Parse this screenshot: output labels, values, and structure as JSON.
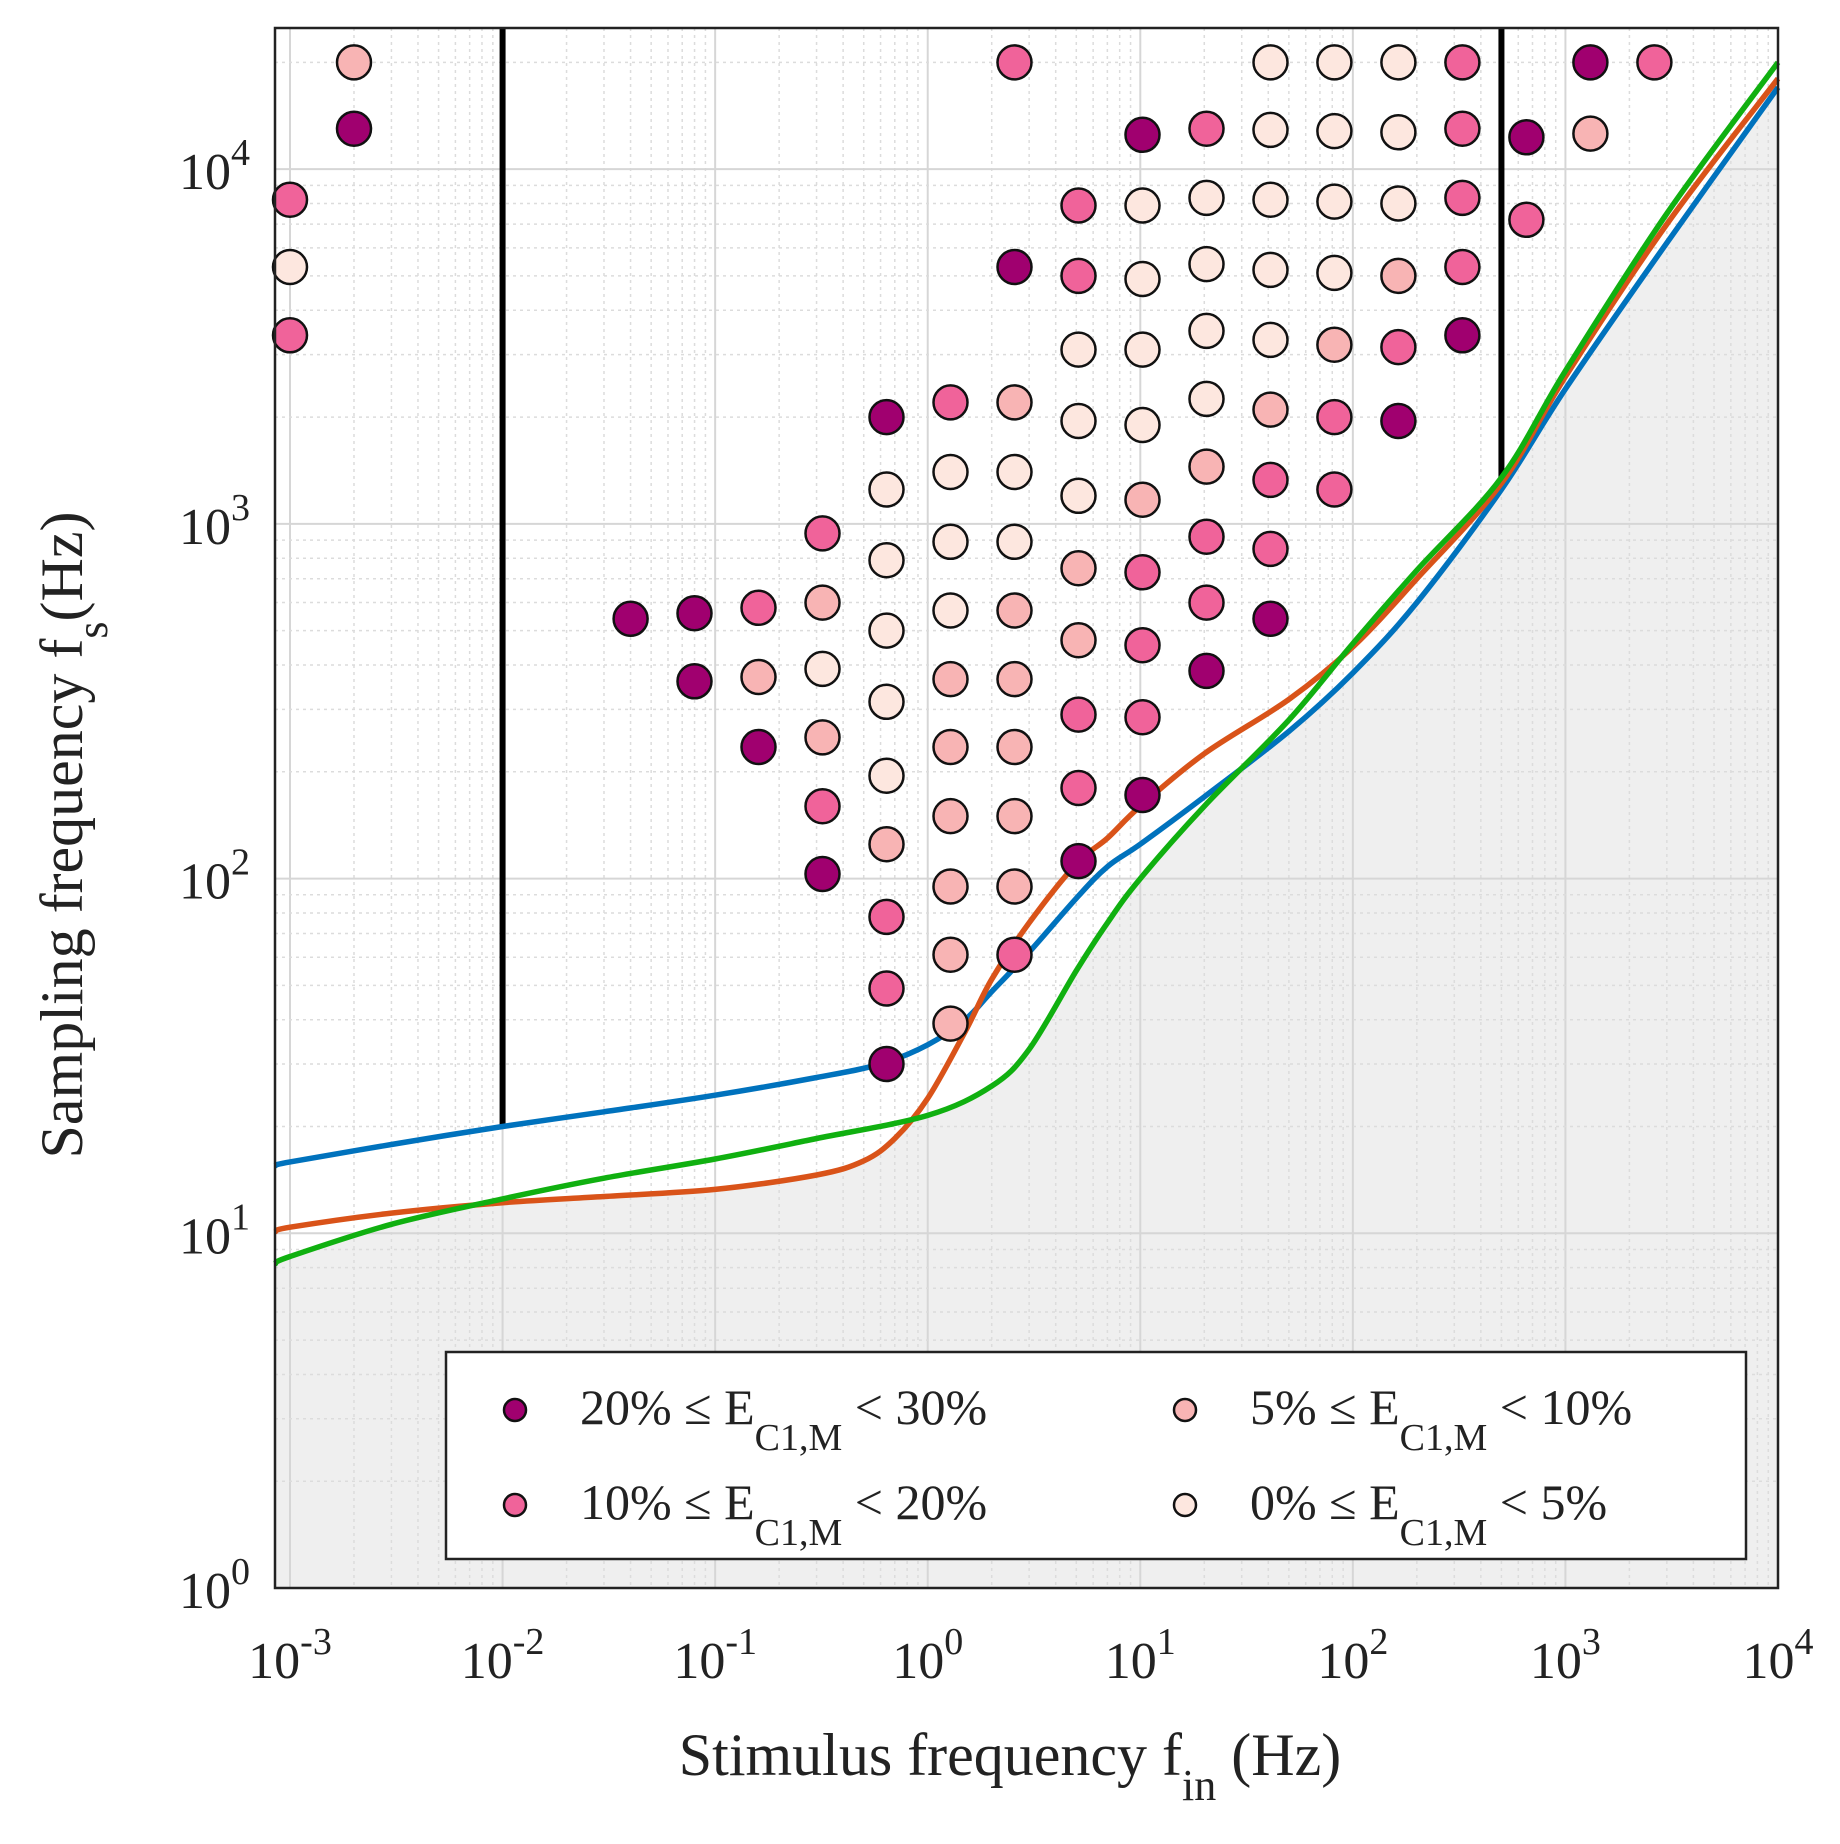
{
  "chart_data": {
    "type": "scatter",
    "xlabel": {
      "main": "Stimulus frequency f",
      "sub": "in",
      "tail": " (Hz)"
    },
    "ylabel": {
      "main": "Sampling frequency f",
      "sub": "s",
      "tail": "(Hz)"
    },
    "xscale": "log",
    "yscale": "log",
    "xlim": [
      0.00085,
      10000
    ],
    "ylim": [
      1,
      25000
    ],
    "grid": true,
    "x_ticks": [
      {
        "value": 0.001,
        "base": "10",
        "exp": "-3"
      },
      {
        "value": 0.01,
        "base": "10",
        "exp": "-2"
      },
      {
        "value": 0.1,
        "base": "10",
        "exp": "-1"
      },
      {
        "value": 1,
        "base": "10",
        "exp": "0"
      },
      {
        "value": 10,
        "base": "10",
        "exp": "1"
      },
      {
        "value": 100,
        "base": "10",
        "exp": "2"
      },
      {
        "value": 1000,
        "base": "10",
        "exp": "3"
      },
      {
        "value": 10000,
        "base": "10",
        "exp": "4"
      }
    ],
    "y_ticks": [
      {
        "value": 1,
        "base": "10",
        "exp": "0"
      },
      {
        "value": 10,
        "base": "10",
        "exp": "1"
      },
      {
        "value": 100,
        "base": "10",
        "exp": "2"
      },
      {
        "value": 1000,
        "base": "10",
        "exp": "3"
      },
      {
        "value": 10000,
        "base": "10",
        "exp": "4"
      }
    ],
    "legend": {
      "placement": "bottom-right",
      "entries": [
        {
          "category": "c20",
          "color": "#a0006f",
          "pre": "20% ≤ E",
          "sub": "C1,M",
          "post": " < 30%"
        },
        {
          "category": "c5",
          "color": "#f8b4b4",
          "pre": "5% ≤ E",
          "sub": "C1,M",
          "post": " < 10%"
        },
        {
          "category": "c10",
          "color": "#f0639a",
          "pre": "10% ≤ E",
          "sub": "C1,M",
          "post": " < 20%"
        },
        {
          "category": "c0",
          "color": "#fde7df",
          "pre": "0% ≤ E",
          "sub": "C1,M",
          "post": " < 5%"
        }
      ]
    },
    "shaded_region": {
      "color": "#efefef",
      "description": "area below lower boundary curve"
    },
    "vertical_lines": [
      {
        "x": 0.01,
        "y_from": 20,
        "y_to": 25000,
        "color": "#000000"
      },
      {
        "x": 500,
        "y_from": 1300,
        "y_to": 25000,
        "color": "#000000"
      }
    ],
    "series": [
      {
        "name": "blue",
        "color": "#0072bd",
        "points": [
          [
            0.00085,
            15.5
          ],
          [
            0.001,
            15.9
          ],
          [
            0.003,
            17.8
          ],
          [
            0.01,
            20
          ],
          [
            0.03,
            22
          ],
          [
            0.1,
            24.5
          ],
          [
            0.3,
            27.5
          ],
          [
            0.6,
            30
          ],
          [
            1,
            34
          ],
          [
            1.5,
            40
          ],
          [
            2,
            48
          ],
          [
            3,
            62
          ],
          [
            5,
            88
          ],
          [
            7,
            108
          ],
          [
            10,
            125
          ],
          [
            20,
            170
          ],
          [
            50,
            260
          ],
          [
            100,
            380
          ],
          [
            200,
            600
          ],
          [
            500,
            1250
          ],
          [
            1000,
            2400
          ],
          [
            3000,
            6200
          ],
          [
            10000,
            17000
          ]
        ]
      },
      {
        "name": "orange",
        "color": "#d95319",
        "points": [
          [
            0.00085,
            10.1
          ],
          [
            0.001,
            10.4
          ],
          [
            0.003,
            11.4
          ],
          [
            0.01,
            12.2
          ],
          [
            0.03,
            12.7
          ],
          [
            0.1,
            13.3
          ],
          [
            0.3,
            14.6
          ],
          [
            0.5,
            16
          ],
          [
            0.7,
            18.5
          ],
          [
            1,
            24
          ],
          [
            1.5,
            37
          ],
          [
            2,
            52
          ],
          [
            3,
            75
          ],
          [
            5,
            110
          ],
          [
            7,
            130
          ],
          [
            10,
            160
          ],
          [
            20,
            225
          ],
          [
            50,
            320
          ],
          [
            100,
            450
          ],
          [
            200,
            700
          ],
          [
            500,
            1300
          ],
          [
            1000,
            2600
          ],
          [
            3000,
            7000
          ],
          [
            10000,
            18000
          ]
        ]
      },
      {
        "name": "green",
        "color": "#10b010",
        "points": [
          [
            0.00085,
            8.2
          ],
          [
            0.001,
            8.6
          ],
          [
            0.003,
            10.6
          ],
          [
            0.01,
            12.5
          ],
          [
            0.03,
            14.3
          ],
          [
            0.1,
            16.2
          ],
          [
            0.3,
            18.5
          ],
          [
            1,
            21.5
          ],
          [
            2,
            26
          ],
          [
            3,
            33
          ],
          [
            5,
            55
          ],
          [
            7,
            75
          ],
          [
            10,
            100
          ],
          [
            20,
            160
          ],
          [
            50,
            280
          ],
          [
            100,
            460
          ],
          [
            200,
            740
          ],
          [
            500,
            1350
          ],
          [
            1000,
            2700
          ],
          [
            3000,
            7500
          ],
          [
            10000,
            20000
          ]
        ]
      }
    ],
    "points": [
      {
        "x": 0.001,
        "y": 8200,
        "c": "c10"
      },
      {
        "x": 0.001,
        "y": 5300,
        "c": "c0"
      },
      {
        "x": 0.001,
        "y": 3400,
        "c": "c10"
      },
      {
        "x": 0.002,
        "y": 20000,
        "c": "c5"
      },
      {
        "x": 0.002,
        "y": 13000,
        "c": "c20"
      },
      {
        "x": 0.04,
        "y": 540,
        "c": "c20"
      },
      {
        "x": 0.08,
        "y": 560,
        "c": "c20"
      },
      {
        "x": 0.08,
        "y": 360,
        "c": "c20"
      },
      {
        "x": 0.16,
        "y": 580,
        "c": "c10"
      },
      {
        "x": 0.16,
        "y": 370,
        "c": "c5"
      },
      {
        "x": 0.16,
        "y": 235,
        "c": "c20"
      },
      {
        "x": 0.32,
        "y": 940,
        "c": "c10"
      },
      {
        "x": 0.32,
        "y": 600,
        "c": "c5"
      },
      {
        "x": 0.32,
        "y": 390,
        "c": "c0"
      },
      {
        "x": 0.32,
        "y": 250,
        "c": "c5"
      },
      {
        "x": 0.32,
        "y": 160,
        "c": "c10"
      },
      {
        "x": 0.32,
        "y": 103,
        "c": "c20"
      },
      {
        "x": 0.64,
        "y": 2000,
        "c": "c20"
      },
      {
        "x": 0.64,
        "y": 1250,
        "c": "c0"
      },
      {
        "x": 0.64,
        "y": 790,
        "c": "c0"
      },
      {
        "x": 0.64,
        "y": 500,
        "c": "c0"
      },
      {
        "x": 0.64,
        "y": 315,
        "c": "c0"
      },
      {
        "x": 0.64,
        "y": 195,
        "c": "c0"
      },
      {
        "x": 0.64,
        "y": 125,
        "c": "c5"
      },
      {
        "x": 0.64,
        "y": 78,
        "c": "c10"
      },
      {
        "x": 0.64,
        "y": 49,
        "c": "c10"
      },
      {
        "x": 0.64,
        "y": 30,
        "c": "c20"
      },
      {
        "x": 1.28,
        "y": 2200,
        "c": "c10"
      },
      {
        "x": 1.28,
        "y": 1400,
        "c": "c0"
      },
      {
        "x": 1.28,
        "y": 890,
        "c": "c0"
      },
      {
        "x": 1.28,
        "y": 570,
        "c": "c0"
      },
      {
        "x": 1.28,
        "y": 365,
        "c": "c5"
      },
      {
        "x": 1.28,
        "y": 235,
        "c": "c5"
      },
      {
        "x": 1.28,
        "y": 150,
        "c": "c5"
      },
      {
        "x": 1.28,
        "y": 95,
        "c": "c5"
      },
      {
        "x": 1.28,
        "y": 61,
        "c": "c5"
      },
      {
        "x": 1.28,
        "y": 39,
        "c": "c5"
      },
      {
        "x": 2.56,
        "y": 20000,
        "c": "c10"
      },
      {
        "x": 2.56,
        "y": 5300,
        "c": "c20"
      },
      {
        "x": 2.56,
        "y": 2200,
        "c": "c5"
      },
      {
        "x": 2.56,
        "y": 1400,
        "c": "c0"
      },
      {
        "x": 2.56,
        "y": 890,
        "c": "c0"
      },
      {
        "x": 2.56,
        "y": 570,
        "c": "c5"
      },
      {
        "x": 2.56,
        "y": 365,
        "c": "c5"
      },
      {
        "x": 2.56,
        "y": 235,
        "c": "c5"
      },
      {
        "x": 2.56,
        "y": 150,
        "c": "c5"
      },
      {
        "x": 2.56,
        "y": 95,
        "c": "c5"
      },
      {
        "x": 2.56,
        "y": 61,
        "c": "c10"
      },
      {
        "x": 5.12,
        "y": 7900,
        "c": "c10"
      },
      {
        "x": 5.12,
        "y": 5000,
        "c": "c10"
      },
      {
        "x": 5.12,
        "y": 3100,
        "c": "c0"
      },
      {
        "x": 5.12,
        "y": 1950,
        "c": "c0"
      },
      {
        "x": 5.12,
        "y": 1200,
        "c": "c0"
      },
      {
        "x": 5.12,
        "y": 750,
        "c": "c5"
      },
      {
        "x": 5.12,
        "y": 470,
        "c": "c5"
      },
      {
        "x": 5.12,
        "y": 290,
        "c": "c10"
      },
      {
        "x": 5.12,
        "y": 180,
        "c": "c10"
      },
      {
        "x": 5.12,
        "y": 112,
        "c": "c20"
      },
      {
        "x": 10.24,
        "y": 12500,
        "c": "c20"
      },
      {
        "x": 10.24,
        "y": 7900,
        "c": "c0"
      },
      {
        "x": 10.24,
        "y": 4900,
        "c": "c0"
      },
      {
        "x": 10.24,
        "y": 3100,
        "c": "c0"
      },
      {
        "x": 10.24,
        "y": 1900,
        "c": "c0"
      },
      {
        "x": 10.24,
        "y": 1170,
        "c": "c5"
      },
      {
        "x": 10.24,
        "y": 730,
        "c": "c10"
      },
      {
        "x": 10.24,
        "y": 455,
        "c": "c10"
      },
      {
        "x": 10.24,
        "y": 285,
        "c": "c10"
      },
      {
        "x": 10.24,
        "y": 172,
        "c": "c20"
      },
      {
        "x": 20.48,
        "y": 13000,
        "c": "c10"
      },
      {
        "x": 20.48,
        "y": 8300,
        "c": "c0"
      },
      {
        "x": 20.48,
        "y": 5400,
        "c": "c0"
      },
      {
        "x": 20.48,
        "y": 3500,
        "c": "c0"
      },
      {
        "x": 20.48,
        "y": 2250,
        "c": "c0"
      },
      {
        "x": 20.48,
        "y": 1450,
        "c": "c5"
      },
      {
        "x": 20.48,
        "y": 920,
        "c": "c10"
      },
      {
        "x": 20.48,
        "y": 600,
        "c": "c10"
      },
      {
        "x": 20.48,
        "y": 385,
        "c": "c20"
      },
      {
        "x": 40.96,
        "y": 20000,
        "c": "c0"
      },
      {
        "x": 40.96,
        "y": 12900,
        "c": "c0"
      },
      {
        "x": 40.96,
        "y": 8200,
        "c": "c0"
      },
      {
        "x": 40.96,
        "y": 5200,
        "c": "c0"
      },
      {
        "x": 40.96,
        "y": 3300,
        "c": "c0"
      },
      {
        "x": 40.96,
        "y": 2100,
        "c": "c5"
      },
      {
        "x": 40.96,
        "y": 1330,
        "c": "c10"
      },
      {
        "x": 40.96,
        "y": 850,
        "c": "c10"
      },
      {
        "x": 40.96,
        "y": 540,
        "c": "c20"
      },
      {
        "x": 81.92,
        "y": 20000,
        "c": "c0"
      },
      {
        "x": 81.92,
        "y": 12800,
        "c": "c0"
      },
      {
        "x": 81.92,
        "y": 8100,
        "c": "c0"
      },
      {
        "x": 81.92,
        "y": 5100,
        "c": "c0"
      },
      {
        "x": 81.92,
        "y": 3200,
        "c": "c5"
      },
      {
        "x": 81.92,
        "y": 2000,
        "c": "c10"
      },
      {
        "x": 81.92,
        "y": 1250,
        "c": "c10"
      },
      {
        "x": 163.84,
        "y": 20000,
        "c": "c0"
      },
      {
        "x": 163.84,
        "y": 12700,
        "c": "c0"
      },
      {
        "x": 163.84,
        "y": 8000,
        "c": "c0"
      },
      {
        "x": 163.84,
        "y": 5000,
        "c": "c5"
      },
      {
        "x": 163.84,
        "y": 3150,
        "c": "c10"
      },
      {
        "x": 163.84,
        "y": 1950,
        "c": "c20"
      },
      {
        "x": 327.68,
        "y": 20000,
        "c": "c10"
      },
      {
        "x": 327.68,
        "y": 13000,
        "c": "c10"
      },
      {
        "x": 327.68,
        "y": 8300,
        "c": "c10"
      },
      {
        "x": 327.68,
        "y": 5300,
        "c": "c10"
      },
      {
        "x": 327.68,
        "y": 3400,
        "c": "c20"
      },
      {
        "x": 655.36,
        "y": 12300,
        "c": "c20"
      },
      {
        "x": 655.36,
        "y": 7200,
        "c": "c10"
      },
      {
        "x": 1310.72,
        "y": 20000,
        "c": "c20"
      },
      {
        "x": 1310.72,
        "y": 12600,
        "c": "c5"
      },
      {
        "x": 2621.44,
        "y": 20000,
        "c": "c10"
      }
    ]
  }
}
